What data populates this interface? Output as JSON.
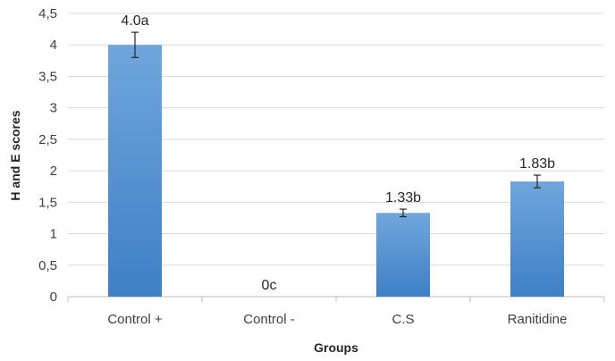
{
  "chart_data": {
    "type": "bar",
    "title": "",
    "xlabel": "Groups",
    "ylabel": "H and E scores",
    "categories": [
      "Control +",
      "Control -",
      "C.S",
      "Ranitidine"
    ],
    "values": [
      4.0,
      0,
      1.33,
      1.83
    ],
    "errors": [
      0.2,
      0,
      0.06,
      0.1
    ],
    "data_labels": [
      "4.0a",
      "0c",
      "1.33b",
      "1.83b"
    ],
    "ylim": [
      0,
      4.5
    ],
    "yticks": [
      "0",
      "0,5",
      "1",
      "1,5",
      "2",
      "2,5",
      "3",
      "3,5",
      "4",
      "4,5"
    ],
    "grid": true,
    "legend": "none",
    "colors": {
      "bar_top": "#6fa6dc",
      "bar_bottom": "#3f7fc6",
      "grid": "#d9d9d9",
      "axis": "#bfbfbf",
      "error": "#262626"
    }
  }
}
